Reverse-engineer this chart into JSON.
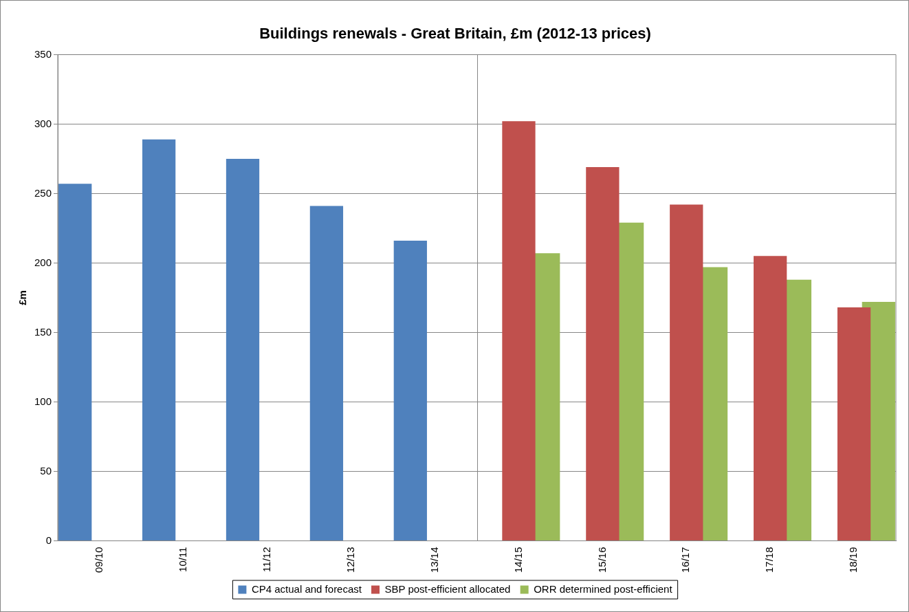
{
  "chart_data": {
    "type": "bar",
    "title": "Buildings renewals - Great Britain, £m (2012-13 prices)",
    "ylabel": "£m",
    "categories": [
      "09/10",
      "10/11",
      "11/12",
      "12/13",
      "13/14",
      "14/15",
      "15/16",
      "16/17",
      "17/18",
      "18/19"
    ],
    "series": [
      {
        "name": "CP4 actual and forecast",
        "color": "#4f81bd",
        "values": [
          257,
          289,
          275,
          241,
          216,
          null,
          null,
          null,
          null,
          null
        ]
      },
      {
        "name": "SBP post-efficient allocated",
        "color": "#c0504d",
        "values": [
          null,
          null,
          null,
          null,
          null,
          302,
          269,
          242,
          205,
          168
        ]
      },
      {
        "name": "ORR determined post-efficient",
        "color": "#9bbb59",
        "values": [
          null,
          null,
          null,
          null,
          null,
          207,
          229,
          197,
          188,
          172
        ]
      }
    ],
    "ylim": [
      0,
      350
    ],
    "yticks": [
      0,
      50,
      100,
      150,
      200,
      250,
      300,
      350
    ],
    "grid": "y",
    "legend": "bottom"
  }
}
